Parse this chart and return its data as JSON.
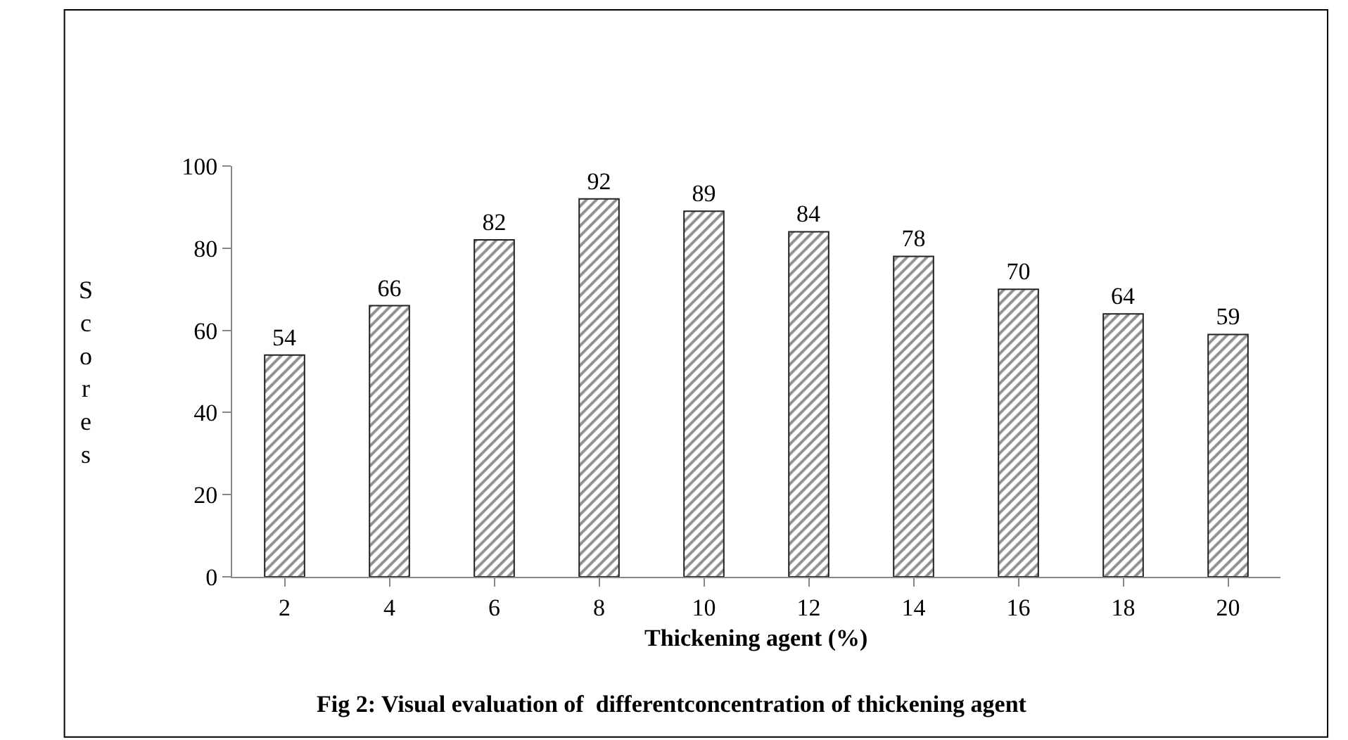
{
  "chart_data": {
    "type": "bar",
    "title": "Fig 2: Visual evaluation of  differentconcentration of thickening agent",
    "xlabel": "Thickening agent (%)",
    "ylabel": "Scores",
    "categories": [
      "2",
      "4",
      "6",
      "8",
      "10",
      "12",
      "14",
      "16",
      "18",
      "20"
    ],
    "values": [
      54,
      66,
      82,
      92,
      89,
      84,
      78,
      70,
      64,
      59
    ],
    "color": "#222222",
    "ylim": [
      0,
      100
    ],
    "yticks": [
      0,
      20,
      40,
      60,
      80,
      100
    ],
    "grid": false,
    "legend": false,
    "data_labels": true
  }
}
